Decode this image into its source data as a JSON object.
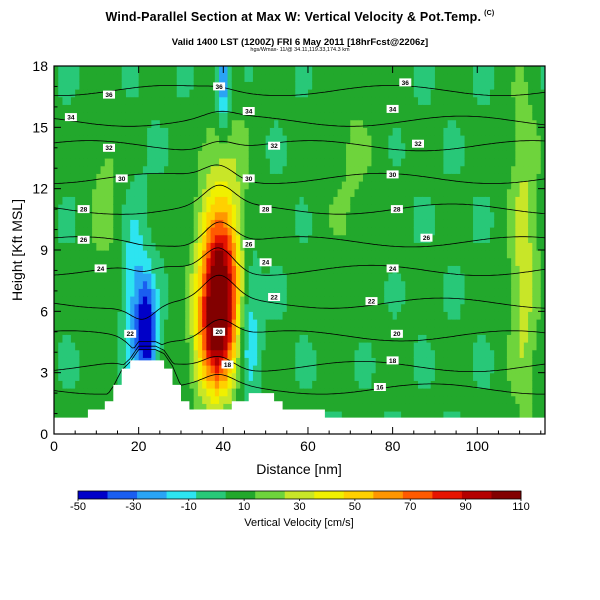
{
  "header": {
    "title": "Wind-Parallel Section at Max W: Vertical Velocity & Pot.Temp.",
    "corner_mark": "(C)",
    "subtitle": "Valid 1400 LST (1200Z) FRI 6 May 2011 [18hrFcst@2206z]",
    "note": "hgs/Wmax- 11/@ 34.11,119.33,174.3 km"
  },
  "colors": {
    "scale": [
      "#0000c8",
      "#1a5ef0",
      "#2aa4f5",
      "#2de4f0",
      "#28c878",
      "#22a82c",
      "#6ed43c",
      "#c8e628",
      "#f0f000",
      "#ffd000",
      "#ff9600",
      "#ff5a00",
      "#e61400",
      "#b40000",
      "#820000"
    ],
    "contour": "#000000",
    "terrain": "#ffffff"
  },
  "chart_data": {
    "type": "heatmap",
    "xlabel": "Distance [nm]",
    "ylabel": "Height [Kft MSL]",
    "xlim": [
      0,
      116
    ],
    "ylim": [
      0,
      18
    ],
    "x_ticks": [
      0,
      20,
      40,
      60,
      80,
      100
    ],
    "y_ticks": [
      0,
      3,
      6,
      9,
      12,
      15,
      18
    ],
    "colorbar": {
      "title": "Vertical Velocity [cm/s]",
      "min": -50,
      "max": 110,
      "tick_values": [
        -50,
        -30,
        -10,
        10,
        30,
        50,
        70,
        90,
        110
      ],
      "tick_labels": [
        "-50",
        "-30",
        "-10",
        "10",
        "30",
        "50",
        "70",
        "90",
        "110"
      ]
    },
    "terrain_profile": [
      [
        0,
        0.8
      ],
      [
        6,
        0.8
      ],
      [
        8,
        1.0
      ],
      [
        12,
        1.4
      ],
      [
        14,
        2.0
      ],
      [
        16,
        2.8
      ],
      [
        18,
        3.2
      ],
      [
        20,
        3.8
      ],
      [
        24,
        3.8
      ],
      [
        26,
        3.6
      ],
      [
        28,
        3.0
      ],
      [
        30,
        2.0
      ],
      [
        32,
        1.5
      ],
      [
        34,
        1.0
      ],
      [
        38,
        1.0
      ],
      [
        42,
        1.3
      ],
      [
        44,
        1.6
      ],
      [
        46,
        1.8
      ],
      [
        52,
        1.8
      ],
      [
        54,
        1.5
      ],
      [
        56,
        1.2
      ],
      [
        60,
        1.1
      ],
      [
        64,
        1.0
      ],
      [
        70,
        0.9
      ],
      [
        76,
        0.8
      ],
      [
        116,
        0.8
      ]
    ],
    "vertical_velocity_features": [
      {
        "x": 39,
        "z": 7.0,
        "value": 100,
        "sigma_x": 3.2,
        "sigma_z": 2.4
      },
      {
        "x": 38,
        "z": 4.0,
        "value": 45,
        "sigma_x": 3.5,
        "sigma_z": 2.0
      },
      {
        "x": 40,
        "z": 11.5,
        "value": 25,
        "sigma_x": 4.0,
        "sigma_z": 3.5
      },
      {
        "x": 22,
        "z": 5.0,
        "value": -55,
        "sigma_x": 1.6,
        "sigma_z": 1.8
      },
      {
        "x": 19,
        "z": 6.5,
        "value": -25,
        "sigma_x": 2.0,
        "sigma_z": 3.0
      },
      {
        "x": 46,
        "z": 5.5,
        "value": -25,
        "sigma_x": 1.8,
        "sigma_z": 2.5
      },
      {
        "x": 40,
        "z": 17.0,
        "value": -40,
        "sigma_x": 1.2,
        "sigma_z": 1.5
      },
      {
        "x": 111,
        "z": 8.5,
        "value": 25,
        "sigma_x": 2.5,
        "sigma_z": 6.0
      },
      {
        "x": 12,
        "z": 12.0,
        "value": 12,
        "sigma_x": 3.0,
        "sigma_z": 4.0
      },
      {
        "x": 70,
        "z": 13.0,
        "value": 10,
        "sigma_x": 5.0,
        "sigma_z": 4.0
      }
    ],
    "theta_contours": [
      {
        "value": 16,
        "height": 2.2,
        "label_x": 78
      },
      {
        "value": 18,
        "height": 3.3,
        "label_x": 80
      },
      {
        "value": 20,
        "height": 4.8,
        "label_x": 83
      },
      {
        "value": 22,
        "height": 6.4,
        "label_x": 75
      },
      {
        "value": 24,
        "height": 8.0,
        "label_x": 80
      },
      {
        "value": 26,
        "height": 9.4,
        "label_x": 88
      },
      {
        "value": 28,
        "height": 11.0,
        "label_x": 82
      },
      {
        "value": 30,
        "height": 12.5,
        "label_x": 80
      },
      {
        "value": 32,
        "height": 14.1,
        "label_x": 86
      },
      {
        "value": 34,
        "height": 15.3,
        "label_x": 80
      },
      {
        "value": 36,
        "height": 16.8,
        "label_x": 84
      }
    ],
    "contour_labels": [
      {
        "text": "36",
        "x": 13,
        "z": 16.6
      },
      {
        "text": "34",
        "x": 4,
        "z": 15.5
      },
      {
        "text": "32",
        "x": 13,
        "z": 14.0
      },
      {
        "text": "30",
        "x": 16,
        "z": 12.5
      },
      {
        "text": "28",
        "x": 7,
        "z": 11.0
      },
      {
        "text": "26",
        "x": 7,
        "z": 9.5
      },
      {
        "text": "24",
        "x": 11,
        "z": 8.1
      },
      {
        "text": "22",
        "x": 18,
        "z": 4.9
      },
      {
        "text": "36",
        "x": 39,
        "z": 17.0
      },
      {
        "text": "34",
        "x": 46,
        "z": 15.8
      },
      {
        "text": "32",
        "x": 52,
        "z": 14.1
      },
      {
        "text": "30",
        "x": 46,
        "z": 12.5
      },
      {
        "text": "28",
        "x": 50,
        "z": 11.0
      },
      {
        "text": "26",
        "x": 46,
        "z": 9.3
      },
      {
        "text": "24",
        "x": 50,
        "z": 8.4
      },
      {
        "text": "22",
        "x": 52,
        "z": 6.7
      },
      {
        "text": "20",
        "x": 39,
        "z": 5.0
      },
      {
        "text": "18",
        "x": 41,
        "z": 3.4
      },
      {
        "text": "36",
        "x": 83,
        "z": 17.2
      },
      {
        "text": "34",
        "x": 80,
        "z": 15.9
      },
      {
        "text": "32",
        "x": 86,
        "z": 14.2
      },
      {
        "text": "30",
        "x": 80,
        "z": 12.7
      },
      {
        "text": "28",
        "x": 81,
        "z": 11.0
      },
      {
        "text": "26",
        "x": 88,
        "z": 9.6
      },
      {
        "text": "24",
        "x": 80,
        "z": 8.1
      },
      {
        "text": "22",
        "x": 75,
        "z": 6.5
      },
      {
        "text": "20",
        "x": 81,
        "z": 4.9
      },
      {
        "text": "18",
        "x": 80,
        "z": 3.6
      },
      {
        "text": "16",
        "x": 77,
        "z": 2.3
      }
    ]
  }
}
